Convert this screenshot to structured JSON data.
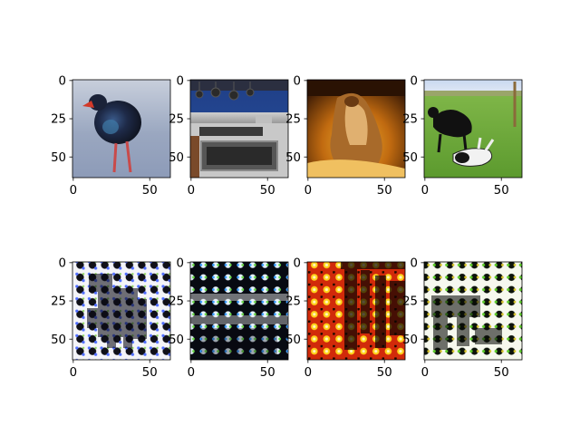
{
  "chart_data": [
    {
      "type": "image",
      "row": "top",
      "image_description": "purple swamphen bird standing on blue-gray ground",
      "x_ticks": [
        0,
        50
      ],
      "y_ticks": [
        0,
        25,
        50
      ],
      "xlim": [
        -0.5,
        63.5
      ],
      "ylim": [
        63.5,
        -0.5
      ]
    },
    {
      "type": "image",
      "row": "top",
      "image_description": "kitchen stove and oven with hanging pots and pans, blue wall",
      "x_ticks": [
        0,
        50
      ],
      "y_ticks": [
        0,
        25,
        50
      ],
      "xlim": [
        -0.5,
        63.5
      ],
      "ylim": [
        63.5,
        -0.5
      ]
    },
    {
      "type": "image",
      "row": "top",
      "image_description": "lizard in warm orange and yellow light on dark background",
      "x_ticks": [
        0,
        50
      ],
      "y_ticks": [
        0,
        25,
        50
      ],
      "xlim": [
        -0.5,
        63.5
      ],
      "ylim": [
        63.5,
        -0.5
      ]
    },
    {
      "type": "image",
      "row": "top",
      "image_description": "two black and white dogs playing on green grass",
      "x_ticks": [
        0,
        50
      ],
      "y_ticks": [
        0,
        25,
        50
      ],
      "xlim": [
        -0.5,
        63.5
      ],
      "ylim": [
        63.5,
        -0.5
      ]
    },
    {
      "type": "image",
      "row": "bottom",
      "image_description": "reconstruction: white and blue dotted grid with dark bird silhouette",
      "x_ticks": [
        0,
        50
      ],
      "y_ticks": [
        0,
        25,
        50
      ],
      "xlim": [
        -0.5,
        63.5
      ],
      "ylim": [
        63.5,
        -0.5
      ]
    },
    {
      "type": "image",
      "row": "bottom",
      "image_description": "reconstruction: dark dotted grid with bright horizontal bands",
      "x_ticks": [
        0,
        50
      ],
      "y_ticks": [
        0,
        25,
        50
      ],
      "xlim": [
        -0.5,
        63.5
      ],
      "ylim": [
        63.5,
        -0.5
      ]
    },
    {
      "type": "image",
      "row": "bottom",
      "image_description": "reconstruction: red, orange and yellow dotted grid with dark vertical shapes",
      "x_ticks": [
        0,
        50
      ],
      "y_ticks": [
        0,
        25,
        50
      ],
      "xlim": [
        -0.5,
        63.5
      ],
      "ylim": [
        63.5,
        -0.5
      ]
    },
    {
      "type": "image",
      "row": "bottom",
      "image_description": "reconstruction: white and green dotted grid with dark dog silhouette",
      "x_ticks": [
        0,
        50
      ],
      "y_ticks": [
        0,
        25,
        50
      ],
      "xlim": [
        -0.5,
        63.5
      ],
      "ylim": [
        63.5,
        -0.5
      ]
    }
  ],
  "colors": {
    "axis": "#000000",
    "background": "#ffffff"
  }
}
